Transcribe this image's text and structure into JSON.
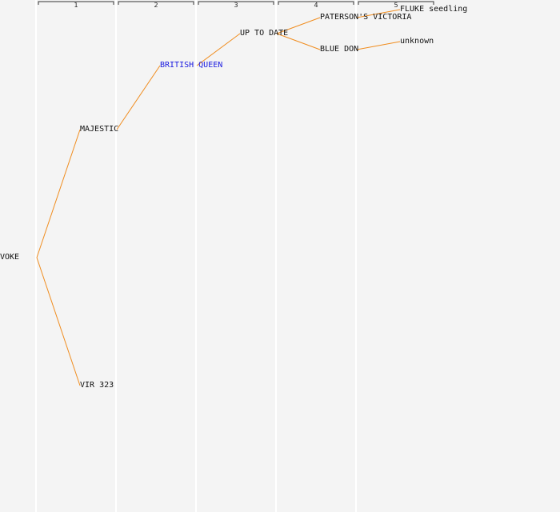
{
  "generations": [
    "1",
    "2",
    "3",
    "4",
    "5"
  ],
  "nodes": [
    {
      "id": "voke",
      "label": "VOKE",
      "gen": 0,
      "highlight": false
    },
    {
      "id": "majestic",
      "label": "MAJESTIC",
      "gen": 1,
      "highlight": false
    },
    {
      "id": "vir-323",
      "label": "VIR 323",
      "gen": 1,
      "highlight": false
    },
    {
      "id": "british-queen",
      "label": "BRITISH QUEEN",
      "gen": 2,
      "highlight": true
    },
    {
      "id": "up-to-date",
      "label": "UP TO DATE",
      "gen": 3,
      "highlight": false
    },
    {
      "id": "patersons-victoria",
      "label": "PATERSON'S VICTORIA",
      "gen": 4,
      "highlight": false
    },
    {
      "id": "blue-don",
      "label": "BLUE DON",
      "gen": 4,
      "highlight": false
    },
    {
      "id": "fluke-seedling",
      "label": "FLUKE seedling",
      "gen": 5,
      "highlight": false
    },
    {
      "id": "unknown",
      "label": "unknown",
      "gen": 5,
      "highlight": false
    }
  ],
  "edges": [
    [
      "voke",
      "majestic"
    ],
    [
      "voke",
      "vir-323"
    ],
    [
      "majestic",
      "british-queen"
    ],
    [
      "british-queen",
      "up-to-date"
    ],
    [
      "up-to-date",
      "patersons-victoria"
    ],
    [
      "up-to-date",
      "blue-don"
    ],
    [
      "patersons-victoria",
      "fluke-seedling"
    ],
    [
      "blue-don",
      "unknown"
    ]
  ],
  "colors": {
    "background": "#f4f4f4",
    "edge": "#f08c1e",
    "column_line": "#ffffff",
    "bracket": "#333333",
    "label": "#111111",
    "highlight": "#1a1ae0"
  }
}
